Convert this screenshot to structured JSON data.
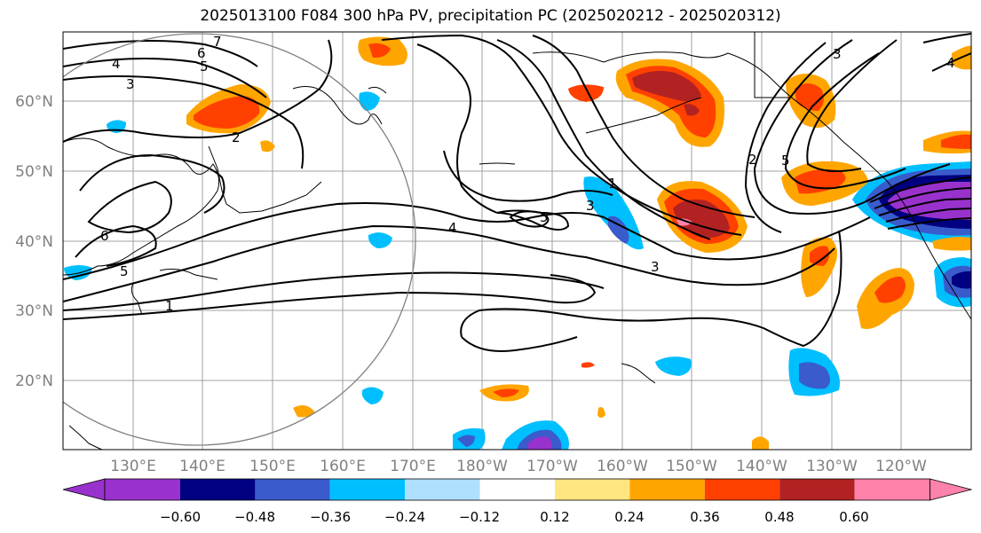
{
  "title": "2025013100 F084 300 hPa PV, precipitation PC (2025020212 - 2025020312)",
  "map": {
    "projection": "PlateCarree, central longitude 180",
    "lon_range": [
      120,
      250
    ],
    "lat_range": [
      10,
      70
    ],
    "lat_labels": [
      "20°N",
      "30°N",
      "40°N",
      "50°N",
      "60°N"
    ],
    "lon_labels": [
      "130°E",
      "140°E",
      "150°E",
      "160°E",
      "170°E",
      "180°W",
      "170°W",
      "160°W",
      "150°W",
      "140°W",
      "130°W",
      "120°W"
    ],
    "pv_contour_labels": [
      "7",
      "6",
      "5",
      "4",
      "3",
      "2",
      "6",
      "5",
      "1",
      "1",
      "5",
      "4",
      "3",
      "3",
      "2",
      "5",
      "3",
      "4"
    ]
  },
  "colorbar": {
    "tick_labels": [
      "−0.60",
      "−0.48",
      "−0.36",
      "−0.24",
      "−0.12",
      "0.12",
      "0.24",
      "0.36",
      "0.48",
      "0.60"
    ],
    "bins": [
      {
        "color": "#9932cc"
      },
      {
        "color": "#000080"
      },
      {
        "color": "#3a5bcc"
      },
      {
        "color": "#00bfff"
      },
      {
        "color": "#b0e0ff"
      },
      {
        "color": "#ffffff"
      },
      {
        "color": "#ffe680"
      },
      {
        "color": "#ffa500"
      },
      {
        "color": "#ff4000"
      },
      {
        "color": "#b22222"
      },
      {
        "color": "#ff82ab"
      }
    ]
  }
}
